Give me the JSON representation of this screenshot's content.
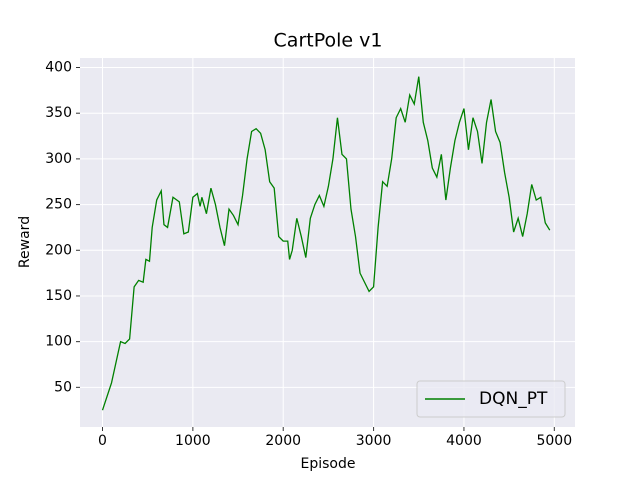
{
  "chart_data": {
    "type": "line",
    "title": "CartPole v1",
    "xlabel": "Episode",
    "ylabel": "Reward",
    "x": [
      0,
      100,
      200,
      250,
      300,
      350,
      400,
      450,
      480,
      520,
      550,
      600,
      650,
      680,
      720,
      780,
      850,
      900,
      950,
      1000,
      1050,
      1080,
      1100,
      1150,
      1200,
      1250,
      1300,
      1350,
      1400,
      1450,
      1500,
      1550,
      1600,
      1650,
      1700,
      1750,
      1800,
      1850,
      1900,
      1950,
      2000,
      2050,
      2070,
      2100,
      2150,
      2200,
      2250,
      2300,
      2350,
      2400,
      2450,
      2500,
      2550,
      2600,
      2650,
      2700,
      2750,
      2800,
      2850,
      2900,
      2950,
      3000,
      3050,
      3100,
      3150,
      3200,
      3250,
      3300,
      3350,
      3400,
      3450,
      3500,
      3550,
      3600,
      3650,
      3700,
      3750,
      3800,
      3850,
      3900,
      3950,
      4000,
      4050,
      4100,
      4150,
      4200,
      4250,
      4300,
      4350,
      4400,
      4450,
      4500,
      4550,
      4600,
      4650,
      4700,
      4750,
      4800,
      4850,
      4900,
      4950
    ],
    "series": [
      {
        "name": "DQN_PT",
        "color": "#008000",
        "values": [
          25,
          55,
          100,
          98,
          103,
          160,
          167,
          165,
          190,
          188,
          225,
          255,
          265,
          228,
          225,
          258,
          253,
          218,
          220,
          258,
          262,
          248,
          258,
          240,
          268,
          250,
          225,
          205,
          245,
          238,
          228,
          260,
          300,
          330,
          333,
          328,
          310,
          275,
          268,
          215,
          210,
          210,
          190,
          200,
          235,
          215,
          192,
          235,
          250,
          260,
          248,
          270,
          300,
          345,
          305,
          300,
          245,
          215,
          175,
          165,
          155,
          160,
          225,
          275,
          270,
          300,
          345,
          355,
          340,
          370,
          360,
          390,
          340,
          320,
          290,
          280,
          305,
          255,
          290,
          320,
          340,
          355,
          310,
          345,
          330,
          295,
          340,
          365,
          330,
          318,
          285,
          258,
          220,
          235,
          215,
          240,
          272,
          255,
          258,
          230,
          222
        ]
      }
    ],
    "xlim": [
      -249,
      5229
    ],
    "ylim": [
      6.6,
      410.4
    ],
    "xticks": [
      0,
      1000,
      2000,
      3000,
      4000,
      5000
    ],
    "yticks": [
      50,
      100,
      150,
      200,
      250,
      300,
      350,
      400
    ],
    "grid": true,
    "legend": "lower right"
  }
}
